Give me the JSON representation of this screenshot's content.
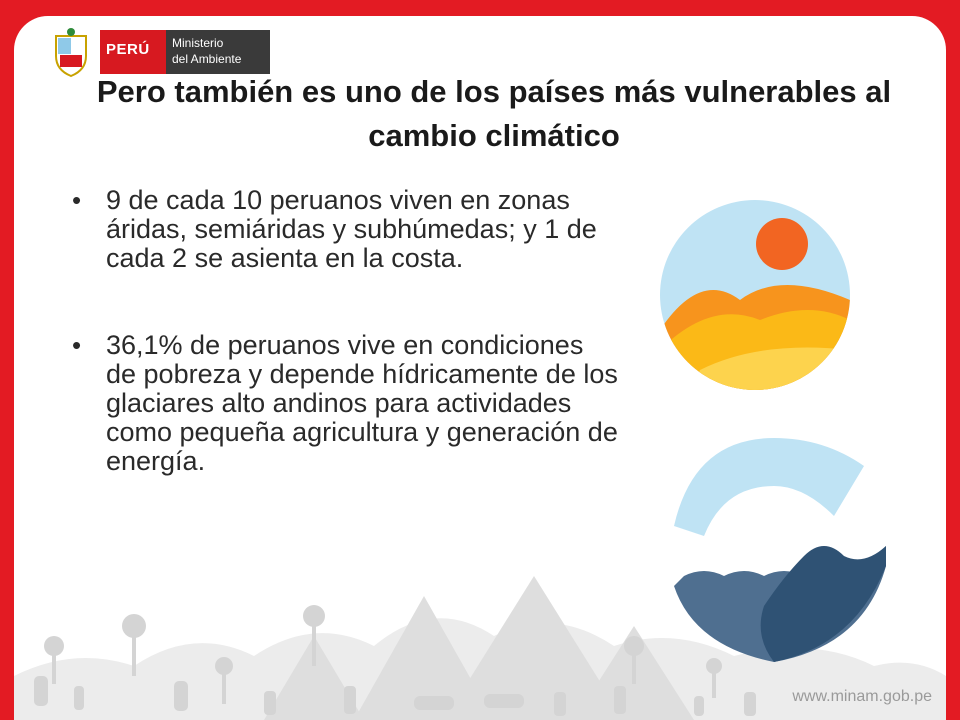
{
  "header": {
    "logo_country": "PERÚ",
    "logo_ministry_line1": "Ministerio",
    "logo_ministry_line2": "del Ambiente"
  },
  "slide": {
    "title": "Pero también es uno de los países más vulnerables al cambio climático",
    "bullets": [
      "9 de cada 10 peruanos viven en zonas áridas, semiáridas y subhúmedas; y 1 de cada 2 se asienta en la costa.",
      "36,1% de peruanos vive en condiciones de pobreza y depende hídricamente de los glaciares alto andinos para actividades como pequeña agricultura y generación de energía."
    ]
  },
  "footer": {
    "website": "www.minam.gob.pe"
  },
  "icons": {
    "desert": "desert-sun-icon",
    "glacier": "glacier-water-icon"
  },
  "colors": {
    "frame": "#e31b23",
    "background": "#ffffff",
    "sun": "#f26522",
    "sky": "#bfe3f4",
    "sand": "#fbb917",
    "water": "#3b5f82"
  }
}
